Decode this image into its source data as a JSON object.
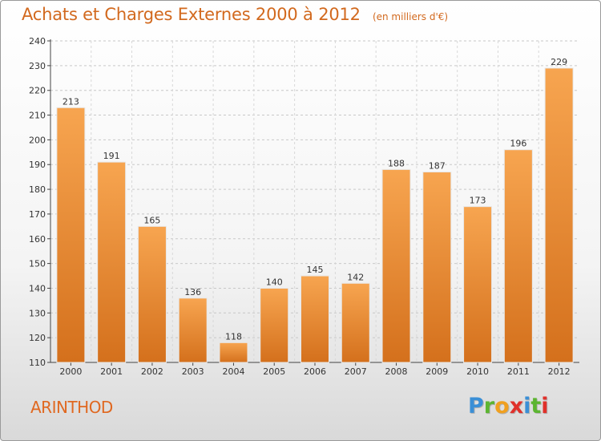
{
  "title": "Achats et Charges Externes 2000 à 2012",
  "subtitle": "(en milliers d'€)",
  "commune": "ARINTHOD",
  "brand": {
    "letters": [
      "P",
      "r",
      "o",
      "x",
      "i",
      "t",
      "i"
    ],
    "colors": [
      "#3a8fd6",
      "#5cb531",
      "#f0a020",
      "#e0302a",
      "#3a8fd6",
      "#5cb531",
      "#e0302a"
    ]
  },
  "colors": {
    "bar": "#f08a2c",
    "bar_light": "#f7a95a",
    "bar_dark": "#d9701a",
    "accent": "#d2691e"
  },
  "chart_data": {
    "type": "bar",
    "title": "Achats et Charges Externes 2000 à 2012",
    "subtitle": "(en milliers d'€)",
    "categories": [
      "2000",
      "2001",
      "2002",
      "2003",
      "2004",
      "2005",
      "2006",
      "2007",
      "2008",
      "2009",
      "2010",
      "2011",
      "2012"
    ],
    "values": [
      213,
      191,
      165,
      136,
      118,
      140,
      145,
      142,
      188,
      187,
      173,
      196,
      229
    ],
    "data_labels": [
      "213",
      "191",
      "165",
      "136",
      "118",
      "140",
      "145",
      "142",
      "188",
      "187",
      "173",
      "196",
      "229"
    ],
    "ylim": [
      110,
      240
    ],
    "yticks": [
      110,
      120,
      130,
      140,
      150,
      160,
      170,
      180,
      190,
      200,
      210,
      220,
      230,
      240
    ],
    "grid": "horizontal dashed",
    "xlabel": "",
    "ylabel": ""
  }
}
